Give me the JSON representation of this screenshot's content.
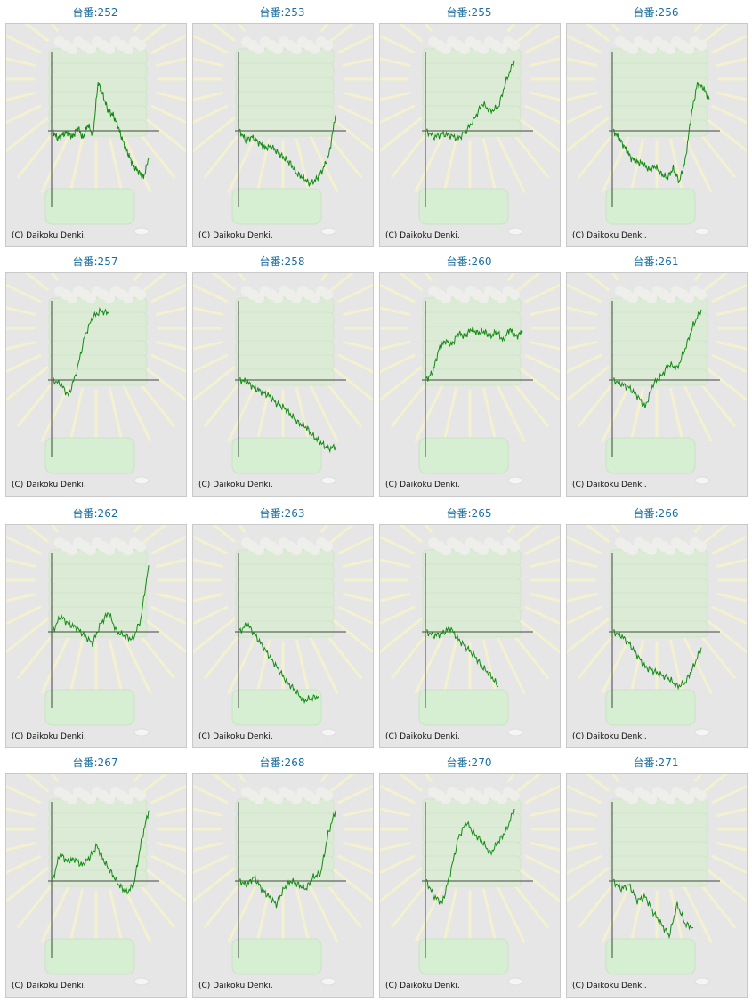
{
  "copyright": "(C) Daikoku Denki.",
  "chart_data": [
    {
      "type": "line",
      "title": "台番:252",
      "series": [
        {
          "values": [
            0,
            -10,
            -5,
            -2,
            -8,
            5,
            -10,
            8,
            -6,
            62,
            45,
            25,
            20,
            5,
            -15,
            -30,
            -45,
            -52,
            -60,
            -35
          ]
        }
      ]
    },
    {
      "type": "line",
      "title": "台番:253",
      "series": [
        {
          "values": [
            0,
            -12,
            -8,
            -15,
            -22,
            -20,
            -28,
            -35,
            -42,
            -55,
            -60,
            -68,
            -62,
            -50,
            -30,
            20
          ]
        }
      ]
    },
    {
      "type": "line",
      "title": "台番:255",
      "series": [
        {
          "values": [
            0,
            -8,
            -4,
            -6,
            -10,
            0,
            15,
            35,
            25,
            30,
            65,
            90
          ]
        }
      ]
    },
    {
      "type": "line",
      "title": "台番:256",
      "series": [
        {
          "values": [
            0,
            -10,
            -22,
            -35,
            -40,
            -42,
            -50,
            -45,
            -55,
            -60,
            -48,
            -65,
            -38,
            20,
            60,
            55,
            40
          ]
        }
      ]
    },
    {
      "type": "line",
      "title": "台番:257",
      "series": [
        {
          "values": [
            0,
            -5,
            -20,
            10,
            55,
            80,
            88,
            85
          ]
        }
      ]
    },
    {
      "type": "line",
      "title": "台番:258",
      "series": [
        {
          "values": [
            0,
            -2,
            -10,
            -15,
            -20,
            -30,
            -35,
            -45,
            -55,
            -60,
            -72,
            -80,
            -88,
            -85
          ]
        }
      ]
    },
    {
      "type": "line",
      "title": "台番:260",
      "series": [
        {
          "values": [
            0,
            10,
            40,
            50,
            45,
            60,
            55,
            65,
            60,
            62,
            55,
            62,
            50,
            65,
            55,
            62
          ]
        }
      ]
    },
    {
      "type": "line",
      "title": "台番:261",
      "series": [
        {
          "values": [
            0,
            -5,
            -10,
            -20,
            -35,
            -5,
            5,
            20,
            15,
            40,
            70,
            90
          ]
        }
      ]
    },
    {
      "type": "line",
      "title": "台番:262",
      "series": [
        {
          "values": [
            0,
            20,
            10,
            5,
            -5,
            -15,
            10,
            25,
            0,
            -5,
            -10,
            15,
            85
          ]
        }
      ]
    },
    {
      "type": "line",
      "title": "台番:263",
      "series": [
        {
          "values": [
            0,
            10,
            -5,
            -20,
            -35,
            -50,
            -65,
            -75,
            -88,
            -85,
            -82
          ]
        }
      ]
    },
    {
      "type": "line",
      "title": "台番:265",
      "series": [
        {
          "values": [
            0,
            -5,
            -2,
            5,
            -10,
            -20,
            -30,
            -45,
            -55,
            -70
          ]
        }
      ]
    },
    {
      "type": "line",
      "title": "台番:266",
      "series": [
        {
          "values": [
            0,
            -5,
            -15,
            -30,
            -45,
            -50,
            -55,
            -60,
            -70,
            -65,
            -45,
            -20
          ]
        }
      ]
    },
    {
      "type": "line",
      "title": "台番:267",
      "series": [
        {
          "values": [
            0,
            35,
            25,
            28,
            20,
            30,
            45,
            25,
            10,
            -5,
            -15,
            -5,
            50,
            90
          ]
        }
      ]
    },
    {
      "type": "line",
      "title": "台番:268",
      "series": [
        {
          "values": [
            0,
            -5,
            5,
            -10,
            -20,
            -30,
            -10,
            0,
            -5,
            -10,
            5,
            10,
            60,
            90
          ]
        }
      ]
    },
    {
      "type": "line",
      "title": "台番:270",
      "series": [
        {
          "values": [
            0,
            -20,
            -28,
            10,
            55,
            75,
            60,
            50,
            35,
            50,
            65,
            92
          ]
        }
      ]
    },
    {
      "type": "line",
      "title": "台番:271",
      "series": [
        {
          "values": [
            0,
            -10,
            -5,
            -25,
            -20,
            -40,
            -55,
            -70,
            -30,
            -55,
            -60
          ]
        }
      ]
    }
  ]
}
